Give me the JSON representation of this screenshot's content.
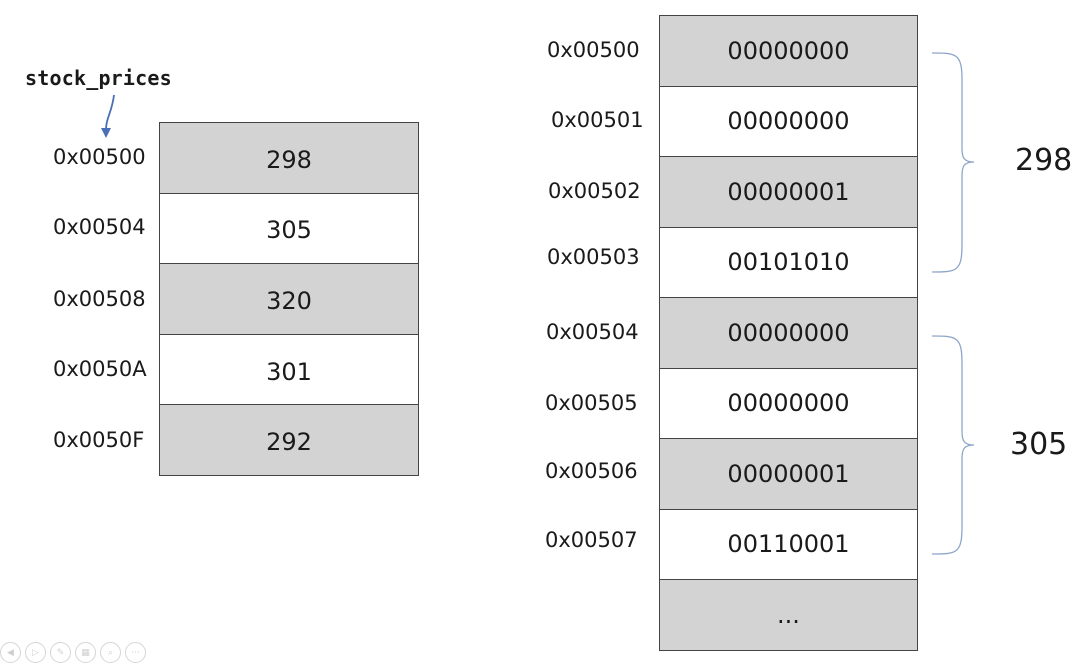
{
  "variable_label": "stock_prices",
  "left_table": {
    "rows": [
      {
        "address": "0x00500",
        "value": "298",
        "shaded": true
      },
      {
        "address": "0x00504",
        "value": "305",
        "shaded": false
      },
      {
        "address": "0x00508",
        "value": "320",
        "shaded": true
      },
      {
        "address": "0x0050A",
        "value": "301",
        "shaded": false
      },
      {
        "address": "0x0050F",
        "value": "292",
        "shaded": true
      }
    ]
  },
  "right_table": {
    "rows": [
      {
        "address": "0x00500",
        "value": "00000000",
        "shaded": true
      },
      {
        "address": "0x00501",
        "value": "00000000",
        "shaded": false
      },
      {
        "address": "0x00502",
        "value": "00000001",
        "shaded": true
      },
      {
        "address": "0x00503",
        "value": "00101010",
        "shaded": false
      },
      {
        "address": "0x00504",
        "value": "00000000",
        "shaded": true
      },
      {
        "address": "0x00505",
        "value": "00000000",
        "shaded": false
      },
      {
        "address": "0x00506",
        "value": "00000001",
        "shaded": true
      },
      {
        "address": "0x00507",
        "value": "00110001",
        "shaded": false
      },
      {
        "address": "",
        "value": "...",
        "shaded": true
      }
    ]
  },
  "braces": [
    {
      "label": "298"
    },
    {
      "label": "305"
    }
  ],
  "colors": {
    "cell_shade": "#d3d3d3",
    "brace": "#8fa6c9",
    "arrow": "#4a6fb5"
  }
}
